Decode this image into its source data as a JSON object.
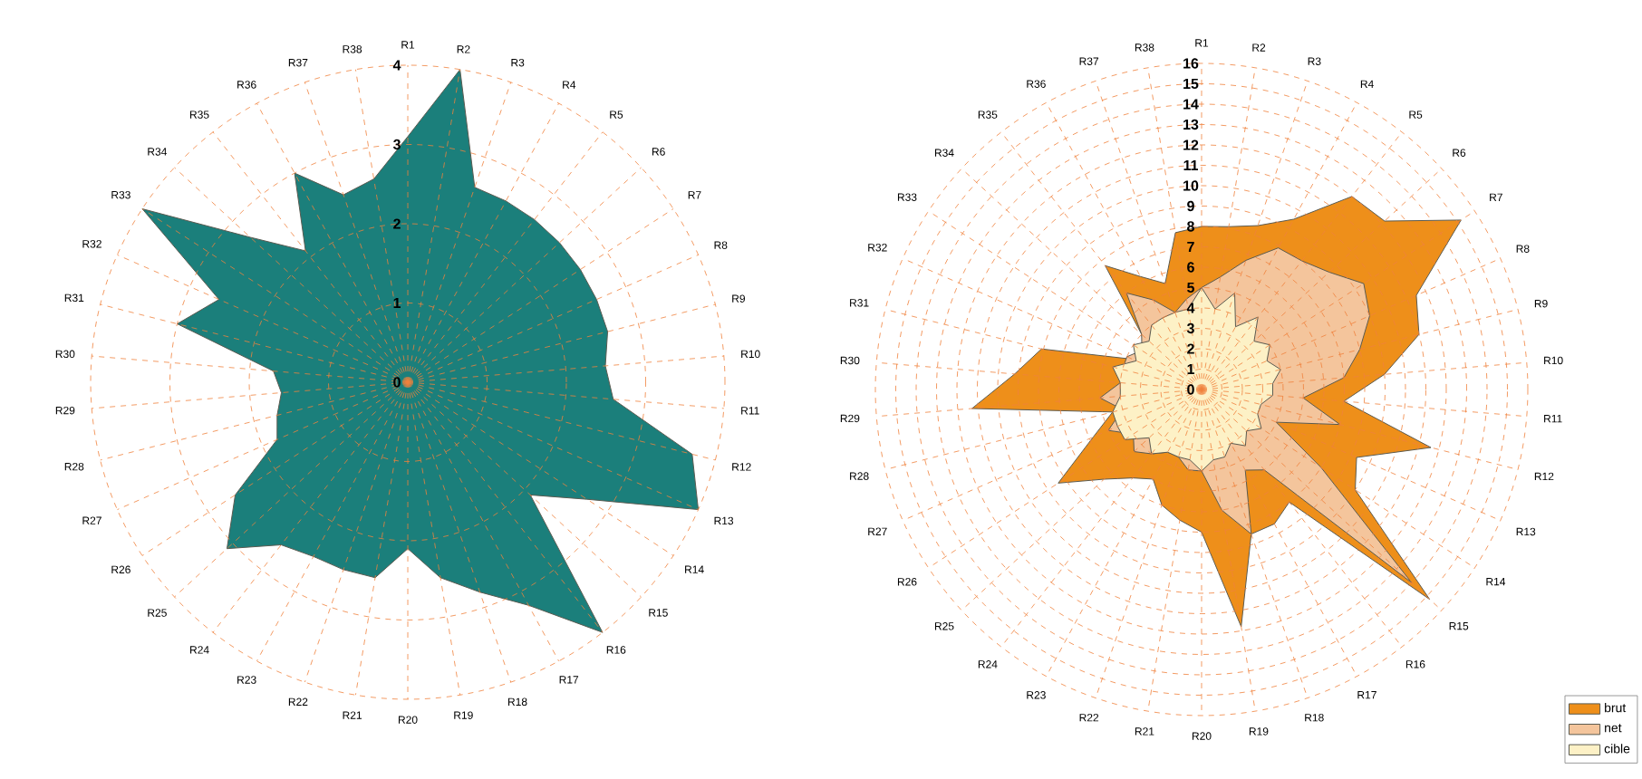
{
  "chart_data": [
    {
      "type": "radar",
      "categories": [
        "R1",
        "R2",
        "R3",
        "R4",
        "R5",
        "R6",
        "R7",
        "R8",
        "R9",
        "R10",
        "R11",
        "R12",
        "R13",
        "R14",
        "R15",
        "R16",
        "R17",
        "R18",
        "R19",
        "R20",
        "R21",
        "R22",
        "R23",
        "R24",
        "R25",
        "R26",
        "R27",
        "R28",
        "R29",
        "R30",
        "R31",
        "R32",
        "R33",
        "R34",
        "R35",
        "R36",
        "R37",
        "R38"
      ],
      "series": [
        {
          "color": "#1b7f7b",
          "values": [
            3.1,
            4.0,
            2.6,
            2.6,
            2.6,
            2.6,
            2.6,
            2.6,
            2.6,
            2.5,
            2.6,
            3.7,
            4.0,
            2.7,
            2.1,
            4.0,
            3.2,
            2.8,
            2.5,
            2.1,
            2.5,
            2.5,
            2.5,
            2.6,
            3.1,
            2.6,
            1.8,
            1.7,
            1.6,
            1.7,
            3.0,
            2.6,
            4.0,
            2.7,
            2.1,
            3.0,
            2.5,
            2.6
          ]
        }
      ],
      "ylim": [
        0,
        4
      ],
      "yticks": [
        0,
        1,
        2,
        3,
        4
      ],
      "grid": true
    },
    {
      "type": "radar",
      "categories": [
        "R1",
        "R2",
        "R3",
        "R4",
        "R5",
        "R6",
        "R7",
        "R8",
        "R9",
        "R10",
        "R11",
        "R12",
        "R13",
        "R14",
        "R15",
        "R16",
        "R17",
        "R18",
        "R19",
        "R20",
        "R21",
        "R22",
        "R23",
        "R24",
        "R25",
        "R26",
        "R27",
        "R28",
        "R29",
        "R30",
        "R31",
        "R32",
        "R33",
        "R34",
        "R35",
        "R36",
        "R37",
        "R38"
      ],
      "series": [
        {
          "name": "brut",
          "color": "#ee8f1a",
          "values": [
            8,
            8.1,
            8.5,
            9.5,
            12,
            12.2,
            15.2,
            11.5,
            11,
            9,
            7,
            11.6,
            8.3,
            9,
            15.2,
            7,
            7.5,
            7.5,
            11.8,
            7,
            6.5,
            6,
            5,
            5.5,
            6.5,
            8.4,
            5.8,
            4.5,
            11.3,
            9.2,
            8.1,
            3.7,
            3.3,
            4,
            7.7,
            6.3,
            5.5,
            7.8
          ]
        },
        {
          "name": "net",
          "color": "#f4c59c",
          "values": [
            5,
            5.6,
            6.7,
            7.9,
            8,
            8.5,
            9.5,
            9,
            8,
            7,
            5,
            7,
            4,
            7,
            14,
            5,
            4.5,
            7.5,
            6,
            4,
            4,
            3.5,
            3.5,
            4,
            4.5,
            4,
            5,
            4,
            5,
            4,
            4,
            4,
            3.5,
            4,
            6,
            5,
            4,
            4.5
          ]
        },
        {
          "name": "cible",
          "color": "#fdf1c6",
          "values": [
            5,
            4,
            5,
            3.5,
            4.5,
            3.5,
            4,
            3.5,
            4,
            3.5,
            3.5,
            3,
            3,
            3.5,
            3,
            3.5,
            3,
            3.5,
            3.5,
            4,
            3.5,
            3.5,
            3.5,
            4,
            3.5,
            4.5,
            4.5,
            4.5,
            4,
            4,
            4.5,
            3.5,
            4,
            3.5,
            4,
            4,
            4,
            4
          ]
        }
      ],
      "ylim": [
        0,
        16
      ],
      "yticks": [
        0,
        1,
        2,
        3,
        4,
        5,
        6,
        7,
        8,
        9,
        10,
        11,
        12,
        13,
        14,
        15,
        16
      ],
      "grid": true,
      "legend": "bottom right"
    }
  ]
}
